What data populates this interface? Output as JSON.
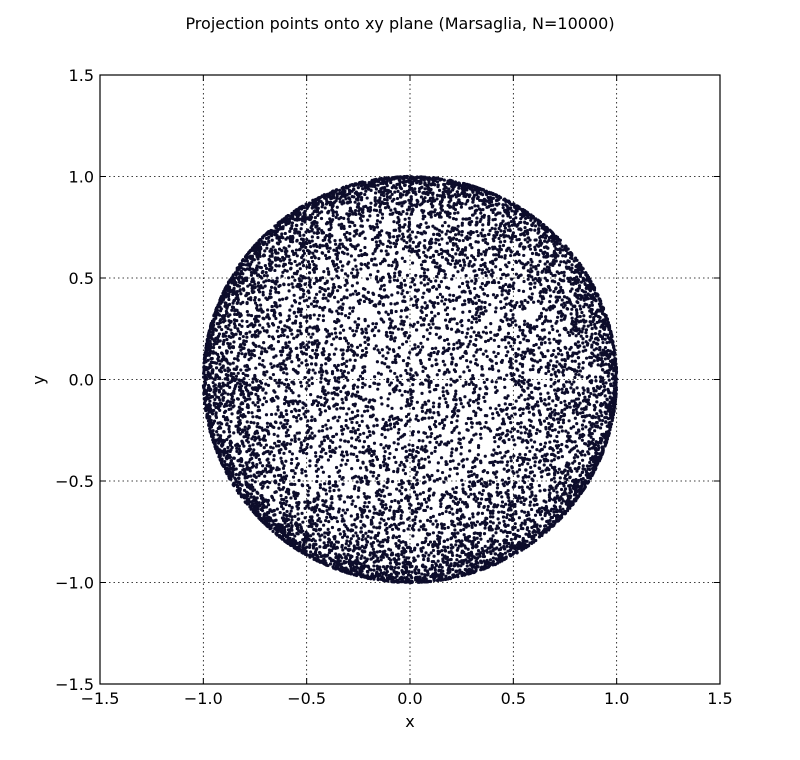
{
  "chart_data": {
    "type": "scatter",
    "title": "Projection points onto xy plane (Marsaglia, N=10000)",
    "xlabel": "x",
    "ylabel": "y",
    "xlim": [
      -1.5,
      1.5
    ],
    "ylim": [
      -1.5,
      1.5
    ],
    "xticks": [
      -1.5,
      -1.0,
      -0.5,
      0.0,
      0.5,
      1.0,
      1.5
    ],
    "yticks": [
      -1.5,
      -1.0,
      -0.5,
      0.0,
      0.5,
      1.0,
      1.5
    ],
    "xtick_labels": [
      "−1.5",
      "−1.0",
      "−0.5",
      "0.0",
      "0.5",
      "1.0",
      "1.5"
    ],
    "ytick_labels": [
      "−1.5",
      "−1.0",
      "−0.5",
      "0.0",
      "0.5",
      "1.0",
      "1.5"
    ],
    "grid": true,
    "marker_color": "#0d0d2b",
    "series": [
      {
        "n_points": 10000,
        "distribution": "xy projection of points uniformly distributed on the unit sphere (Marsaglia method); fills the unit disk with density increasing toward the rim",
        "x_range": [
          -1.0,
          1.0
        ],
        "y_range": [
          -1.0,
          1.0
        ]
      }
    ]
  }
}
